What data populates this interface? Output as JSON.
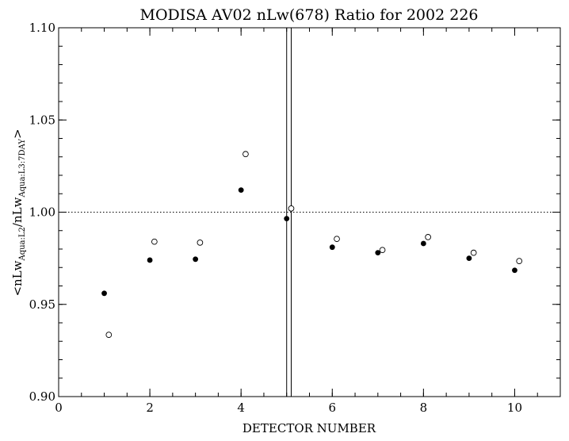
{
  "chart_data": {
    "type": "scatter",
    "title": "MODISA AV02 nLw(678) Ratio for 2002 226",
    "xlabel": "DETECTOR NUMBER",
    "ylabel": {
      "prefix": "<nLw",
      "sub1": "Aqua:L2",
      "mid": "/nLw",
      "sub2": "Aqua:L3:7DAY",
      "suffix": ">"
    },
    "xlim": [
      0,
      11
    ],
    "ylim": [
      0.9,
      1.1
    ],
    "xticks": [
      0,
      2,
      4,
      6,
      8,
      10
    ],
    "xtick_labels": [
      "0",
      "2",
      "4",
      "6",
      "8",
      "10"
    ],
    "yticks": [
      0.9,
      0.95,
      1.0,
      1.05,
      1.1
    ],
    "ytick_labels": [
      "0.90",
      "0.95",
      "1.00",
      "1.05",
      "1.10"
    ],
    "x_minor_step": 0.5,
    "y_minor_step": 0.01,
    "reference_line": {
      "y": 1.0,
      "style": "dotted"
    },
    "vertical_lines": [
      5.0,
      5.1
    ],
    "series": [
      {
        "marker": "filled-circle",
        "x": [
          1,
          2,
          3,
          4,
          5,
          6,
          7,
          8,
          9,
          10
        ],
        "y": [
          0.956,
          0.974,
          0.9745,
          1.012,
          0.9965,
          0.981,
          0.978,
          0.983,
          0.975,
          0.9685
        ]
      },
      {
        "marker": "open-circle",
        "x": [
          1.1,
          2.1,
          3.1,
          4.1,
          5.1,
          6.1,
          7.1,
          8.1,
          9.1,
          10.1
        ],
        "y": [
          0.9335,
          0.984,
          0.9835,
          1.0315,
          1.002,
          0.9855,
          0.9795,
          0.9865,
          0.978,
          0.9735
        ]
      }
    ]
  }
}
